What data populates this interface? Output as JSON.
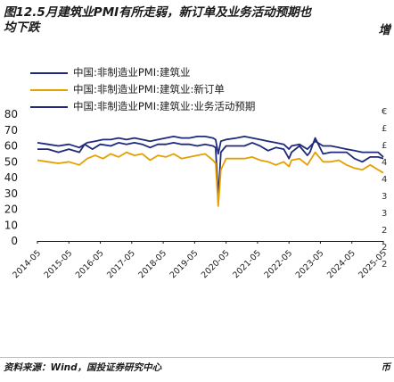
{
  "title": "图12.5月建筑业PMI有所走弱，新订单及业务活动预期也",
  "title_line2": "均下跌",
  "title_cut": "增",
  "source": "资料来源：Wind，国投证券研究中心",
  "source_cut": "币",
  "right_stub_ticks": [
    "€",
    "£",
    "£",
    "4",
    "4",
    "3",
    "3",
    "2",
    "2",
    "2"
  ],
  "colors": {
    "series0": "#1f2a7a",
    "series1": "#e5a000",
    "series2": "#1f2a7a",
    "axis": "#1a1a1a"
  },
  "chart_data": {
    "type": "line",
    "ylim": [
      0,
      80
    ],
    "yticks": [
      0,
      10,
      20,
      30,
      40,
      50,
      60,
      70,
      80
    ],
    "xticks": [
      "2014-05",
      "2015-05",
      "2016-05",
      "2017-05",
      "2018-05",
      "2019-05",
      "2020-05",
      "2021-05",
      "2022-05",
      "2023-05",
      "2024-05",
      "2025-05"
    ],
    "x_range": [
      "2014-05",
      "2025-05"
    ],
    "series": [
      {
        "name": "中国:非制造业PMI:建筑业",
        "points": [
          [
            "2014-05",
            58
          ],
          [
            "2014-09",
            58
          ],
          [
            "2015-01",
            56
          ],
          [
            "2015-05",
            58
          ],
          [
            "2015-09",
            56
          ],
          [
            "2015-11",
            61
          ],
          [
            "2016-02",
            58
          ],
          [
            "2016-05",
            61
          ],
          [
            "2016-09",
            60
          ],
          [
            "2016-12",
            62
          ],
          [
            "2017-03",
            61
          ],
          [
            "2017-06",
            62
          ],
          [
            "2017-09",
            61
          ],
          [
            "2017-12",
            59
          ],
          [
            "2018-03",
            61
          ],
          [
            "2018-06",
            61
          ],
          [
            "2018-09",
            62
          ],
          [
            "2018-12",
            61
          ],
          [
            "2019-03",
            61
          ],
          [
            "2019-06",
            60
          ],
          [
            "2019-09",
            61
          ],
          [
            "2019-12",
            60
          ],
          [
            "2020-01",
            59
          ],
          [
            "2020-02",
            27
          ],
          [
            "2020-03",
            56
          ],
          [
            "2020-05",
            60
          ],
          [
            "2020-09",
            60
          ],
          [
            "2020-12",
            60
          ],
          [
            "2021-03",
            62
          ],
          [
            "2021-06",
            60
          ],
          [
            "2021-09",
            57
          ],
          [
            "2021-12",
            59
          ],
          [
            "2022-03",
            58
          ],
          [
            "2022-05",
            52
          ],
          [
            "2022-06",
            56
          ],
          [
            "2022-09",
            60
          ],
          [
            "2022-12",
            54
          ],
          [
            "2023-01",
            56
          ],
          [
            "2023-03",
            65
          ],
          [
            "2023-06",
            55
          ],
          [
            "2023-09",
            56
          ],
          [
            "2023-12",
            56
          ],
          [
            "2024-03",
            56
          ],
          [
            "2024-06",
            52
          ],
          [
            "2024-09",
            50
          ],
          [
            "2024-12",
            53
          ],
          [
            "2025-03",
            53
          ],
          [
            "2025-05",
            52
          ]
        ]
      },
      {
        "name": "中国:非制造业PMI:建筑业:新订单",
        "points": [
          [
            "2014-05",
            51
          ],
          [
            "2014-09",
            50
          ],
          [
            "2015-01",
            49
          ],
          [
            "2015-05",
            50
          ],
          [
            "2015-09",
            48
          ],
          [
            "2015-12",
            52
          ],
          [
            "2016-03",
            54
          ],
          [
            "2016-06",
            52
          ],
          [
            "2016-09",
            55
          ],
          [
            "2016-12",
            53
          ],
          [
            "2017-03",
            56
          ],
          [
            "2017-06",
            54
          ],
          [
            "2017-09",
            55
          ],
          [
            "2017-12",
            51
          ],
          [
            "2018-03",
            54
          ],
          [
            "2018-06",
            53
          ],
          [
            "2018-09",
            55
          ],
          [
            "2018-12",
            52
          ],
          [
            "2019-03",
            53
          ],
          [
            "2019-06",
            54
          ],
          [
            "2019-09",
            55
          ],
          [
            "2019-12",
            51
          ],
          [
            "2020-01",
            49
          ],
          [
            "2020-02",
            22
          ],
          [
            "2020-03",
            45
          ],
          [
            "2020-05",
            52
          ],
          [
            "2020-09",
            52
          ],
          [
            "2020-12",
            52
          ],
          [
            "2021-03",
            53
          ],
          [
            "2021-06",
            51
          ],
          [
            "2021-09",
            50
          ],
          [
            "2021-12",
            48
          ],
          [
            "2022-03",
            50
          ],
          [
            "2022-05",
            47
          ],
          [
            "2022-06",
            51
          ],
          [
            "2022-09",
            52
          ],
          [
            "2022-12",
            48
          ],
          [
            "2023-03",
            56
          ],
          [
            "2023-06",
            50
          ],
          [
            "2023-09",
            50
          ],
          [
            "2023-12",
            51
          ],
          [
            "2024-03",
            48
          ],
          [
            "2024-06",
            46
          ],
          [
            "2024-09",
            45
          ],
          [
            "2024-12",
            48
          ],
          [
            "2025-03",
            45
          ],
          [
            "2025-05",
            43
          ]
        ]
      },
      {
        "name": "中国:非制造业PMI:建筑业:业务活动预期",
        "points": [
          [
            "2014-05",
            62
          ],
          [
            "2014-09",
            61
          ],
          [
            "2015-01",
            60
          ],
          [
            "2015-05",
            61
          ],
          [
            "2015-09",
            59
          ],
          [
            "2015-12",
            62
          ],
          [
            "2016-03",
            63
          ],
          [
            "2016-06",
            64
          ],
          [
            "2016-09",
            64
          ],
          [
            "2016-12",
            65
          ],
          [
            "2017-03",
            64
          ],
          [
            "2017-06",
            65
          ],
          [
            "2017-09",
            64
          ],
          [
            "2017-12",
            63
          ],
          [
            "2018-03",
            64
          ],
          [
            "2018-06",
            65
          ],
          [
            "2018-09",
            66
          ],
          [
            "2018-12",
            65
          ],
          [
            "2019-03",
            65
          ],
          [
            "2019-06",
            66
          ],
          [
            "2019-09",
            66
          ],
          [
            "2019-12",
            65
          ],
          [
            "2020-01",
            64
          ],
          [
            "2020-02",
            55
          ],
          [
            "2020-03",
            63
          ],
          [
            "2020-05",
            64
          ],
          [
            "2020-09",
            65
          ],
          [
            "2020-12",
            66
          ],
          [
            "2021-03",
            65
          ],
          [
            "2021-06",
            64
          ],
          [
            "2021-09",
            63
          ],
          [
            "2021-12",
            62
          ],
          [
            "2022-03",
            61
          ],
          [
            "2022-05",
            58
          ],
          [
            "2022-06",
            60
          ],
          [
            "2022-09",
            61
          ],
          [
            "2022-12",
            58
          ],
          [
            "2023-03",
            63
          ],
          [
            "2023-06",
            60
          ],
          [
            "2023-09",
            60
          ],
          [
            "2023-12",
            59
          ],
          [
            "2024-03",
            58
          ],
          [
            "2024-06",
            57
          ],
          [
            "2024-09",
            56
          ],
          [
            "2024-12",
            56
          ],
          [
            "2025-03",
            56
          ],
          [
            "2025-05",
            53
          ]
        ]
      }
    ]
  }
}
